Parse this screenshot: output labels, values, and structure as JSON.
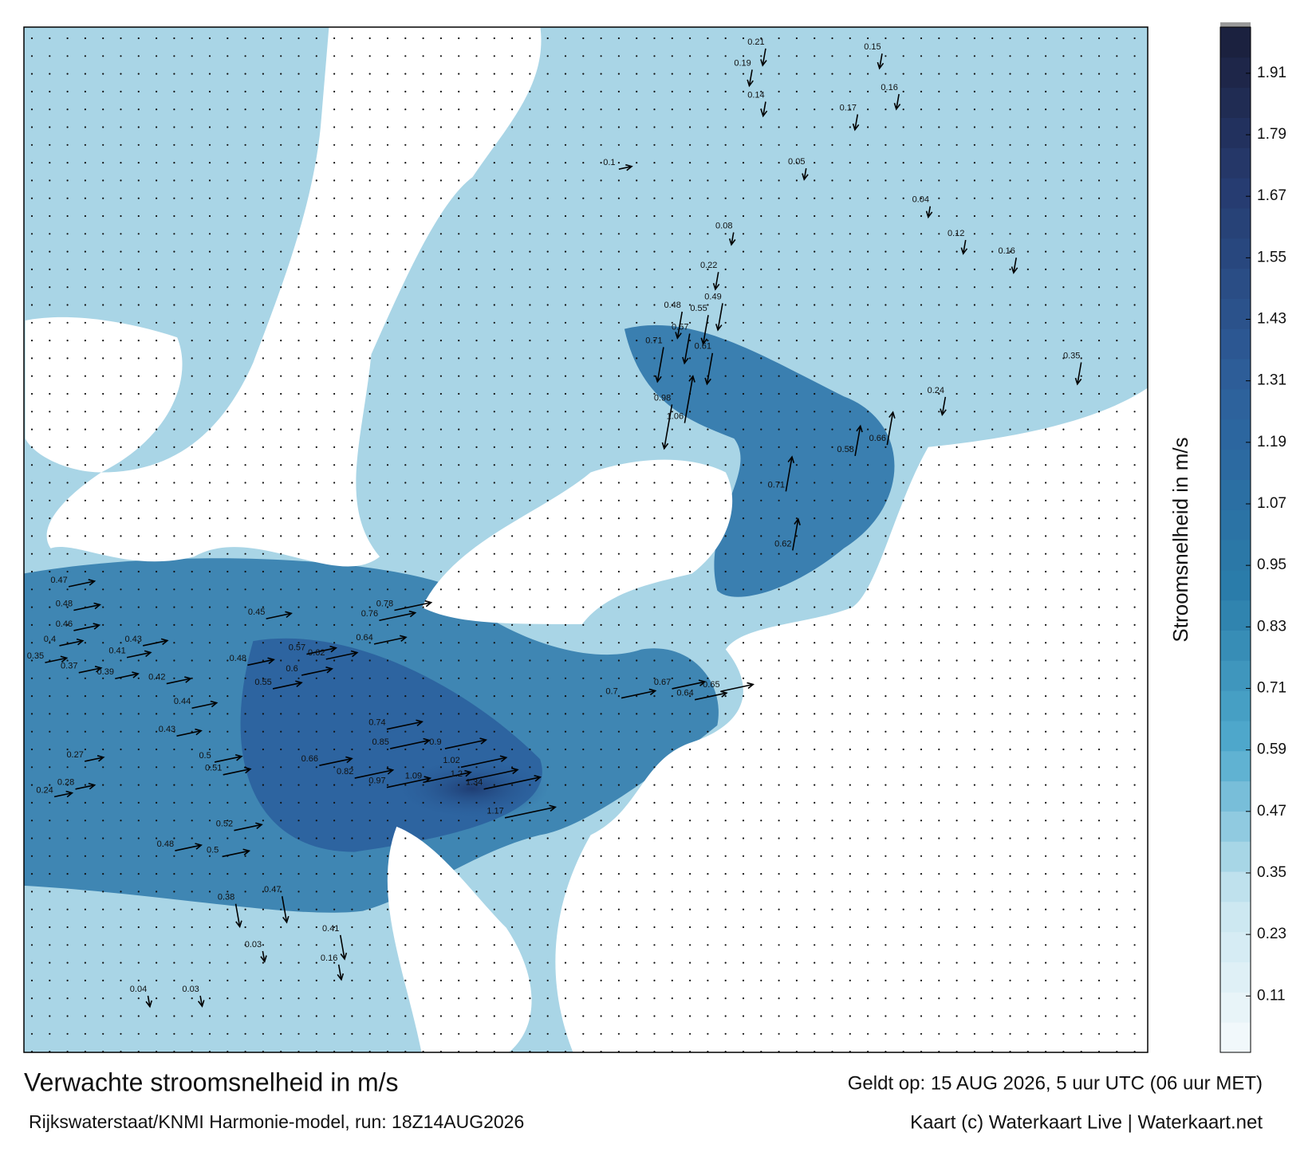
{
  "map": {
    "title": "Verwachte stroomsnelheid in m/s",
    "subtitle": "Rijkswaterstaat/KNMI Harmonie-model, run: 18Z14AUG2026",
    "valid": "Geldt op: 15 AUG 2026, 5 uur UTC (06 uur MET)",
    "credit": "Kaart (c) Waterkaart Live | Waterkaart.net",
    "colorbar": {
      "label": "Stroomsnelheid in m/s",
      "lim": [
        0,
        2.0
      ],
      "ticks": [
        0.11,
        0.23,
        0.35,
        0.47,
        0.59,
        0.71,
        0.83,
        0.95,
        1.07,
        1.19,
        1.31,
        1.43,
        1.55,
        1.67,
        1.79,
        1.91
      ]
    },
    "speeds": [
      0.47,
      0.48,
      0.46,
      0.4,
      0.41,
      0.43,
      0.42,
      0.44,
      0.45,
      0.48,
      0.55,
      0.57,
      0.6,
      0.62,
      0.64,
      0.76,
      0.78,
      0.74,
      0.85,
      0.9,
      1.02,
      1.09,
      1.2,
      1.34,
      1.17,
      0.97,
      0.82,
      0.66,
      0.5,
      0.51,
      0.37,
      0.39,
      0.43,
      0.35,
      0.27,
      0.28,
      0.24,
      0.52,
      0.48,
      0.5,
      0.47,
      0.38,
      0.41,
      0.16,
      0.98,
      1.06,
      0.71,
      0.61,
      0.57,
      0.49,
      0.48,
      0.55,
      0.62,
      0.71,
      0.58,
      0.66,
      0.67,
      0.64,
      0.65,
      0.7,
      0.24,
      0.35,
      0.16,
      0.22,
      0.15,
      0.21,
      0.19,
      0.16,
      0.17,
      0.14,
      0.05,
      0.08,
      0.04,
      0.12,
      0.1,
      0.03,
      0.04,
      0.03
    ]
  }
}
